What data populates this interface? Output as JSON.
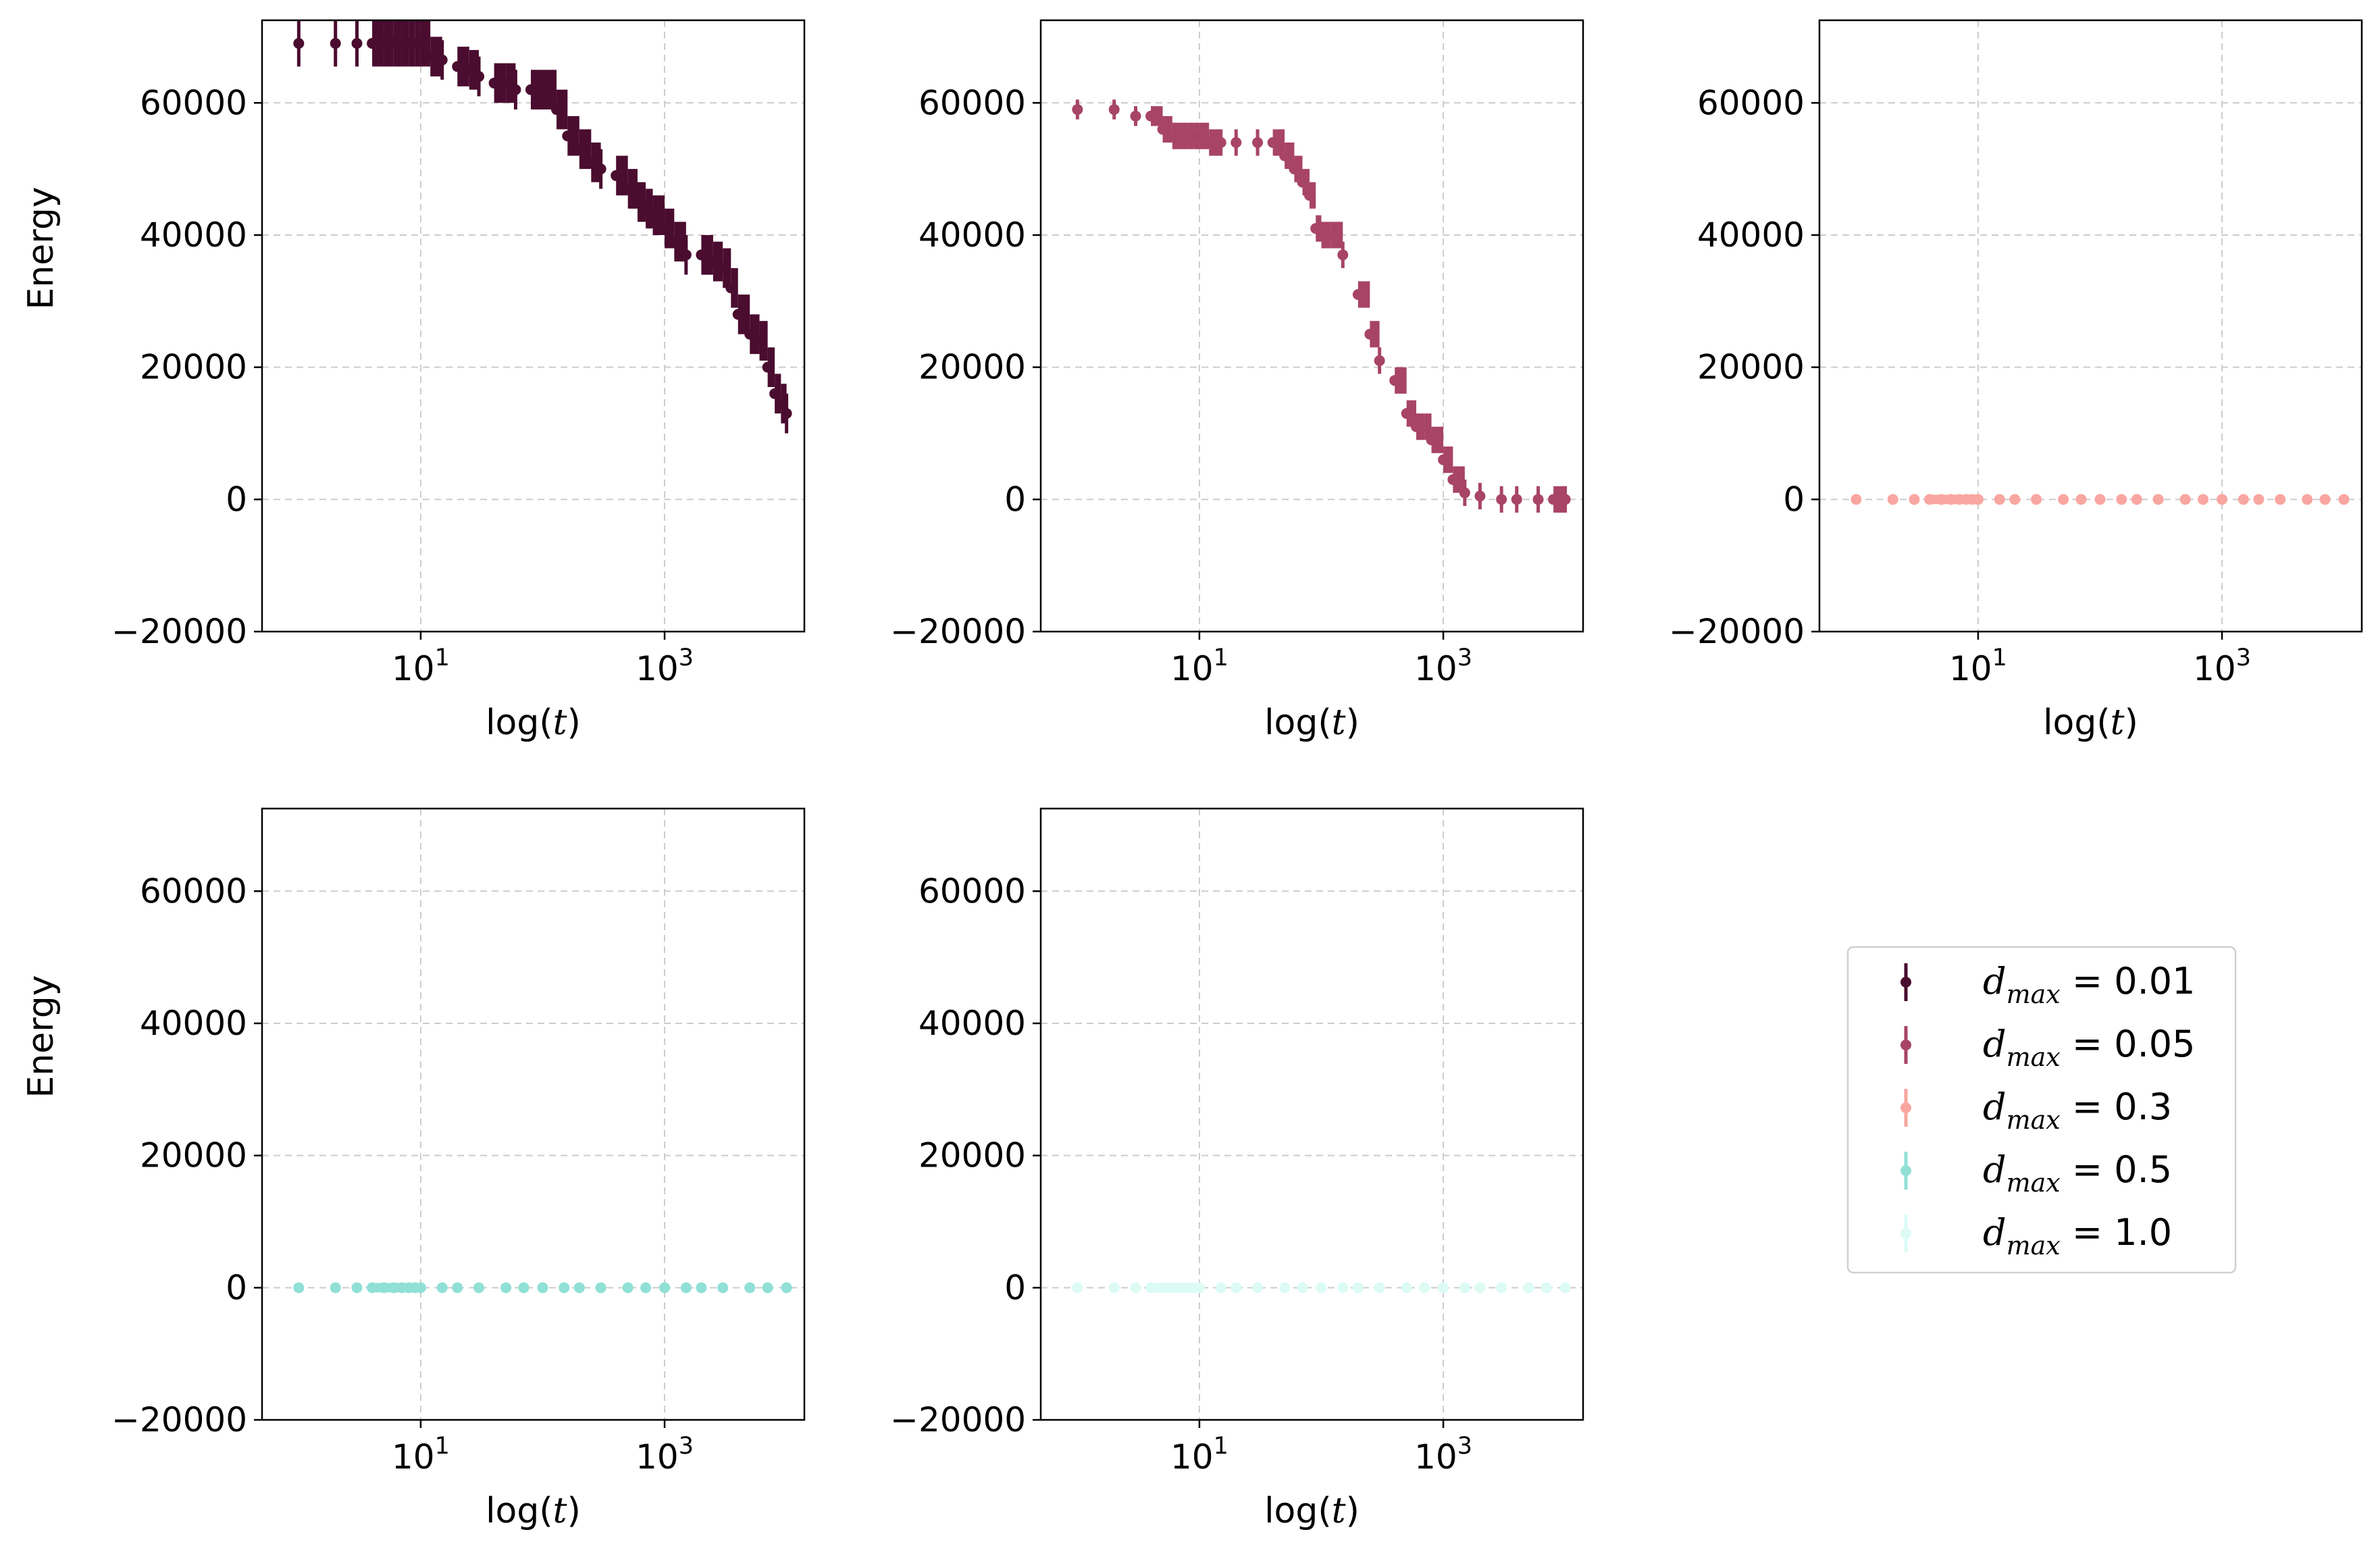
{
  "figure": {
    "panels": [
      {
        "series_index": 0,
        "xlabel_prefix": "log(",
        "xlabel_var": "t",
        "xlabel_suffix": ")",
        "ylabel": "Energy"
      },
      {
        "series_index": 1,
        "xlabel_prefix": "log(",
        "xlabel_var": "t",
        "xlabel_suffix": ")",
        "ylabel": ""
      },
      {
        "series_index": 2,
        "xlabel_prefix": "log(",
        "xlabel_var": "t",
        "xlabel_suffix": ")",
        "ylabel": ""
      },
      {
        "series_index": 3,
        "xlabel_prefix": "log(",
        "xlabel_var": "t",
        "xlabel_suffix": ")",
        "ylabel": "Energy"
      },
      {
        "series_index": 4,
        "xlabel_prefix": "log(",
        "xlabel_var": "t",
        "xlabel_suffix": ")",
        "ylabel": ""
      }
    ],
    "y_ticks": [
      {
        "value": -20000,
        "label": "−20000"
      },
      {
        "value": 0,
        "label": "0"
      },
      {
        "value": 20000,
        "label": "20000"
      },
      {
        "value": 40000,
        "label": "40000"
      },
      {
        "value": 60000,
        "label": "60000"
      }
    ],
    "x_ticks": [
      {
        "value": 10,
        "base": "10",
        "exp": "1"
      },
      {
        "value": 1000,
        "base": "10",
        "exp": "3"
      }
    ],
    "legend": {
      "placement": "right",
      "entries": [
        {
          "var": "d",
          "sub": "max",
          "eq": " = 0.01",
          "color": "#4a0c2f"
        },
        {
          "var": "d",
          "sub": "max",
          "eq": " = 0.05",
          "color": "#a84466"
        },
        {
          "var": "d",
          "sub": "max",
          "eq": " = 0.3",
          "color": "#f9a6a0"
        },
        {
          "var": "d",
          "sub": "max",
          "eq": " = 0.5",
          "color": "#90e0d6"
        },
        {
          "var": "d",
          "sub": "max",
          "eq": " = 1.0",
          "color": "#dcfbf5"
        }
      ]
    }
  },
  "chart_data": {
    "type": "scatter",
    "x_scale": "log",
    "xlim": [
      0.5,
      14000
    ],
    "ylim": [
      -20000,
      72500
    ],
    "grid": true,
    "series": [
      {
        "name": "d_max = 0.01",
        "color": "#4a0c2f",
        "x": [
          1,
          2,
          3,
          4,
          5,
          6,
          7,
          8,
          9,
          10,
          12,
          15,
          20,
          25,
          30,
          40,
          50,
          60,
          80,
          100,
          130,
          160,
          200,
          250,
          300,
          400,
          500,
          600,
          700,
          800,
          1000,
          1200,
          1500,
          2000,
          2500,
          3000,
          3500,
          4000,
          5000,
          6000,
          7000,
          8000,
          9000,
          10000
        ],
        "y": [
          69000,
          69000,
          69000,
          69000,
          69000,
          69000,
          69000,
          69000,
          69000,
          69000,
          67000,
          66500,
          65500,
          65000,
          64000,
          63000,
          63000,
          62000,
          62000,
          62000,
          59000,
          55000,
          53000,
          51000,
          50000,
          49000,
          47000,
          45000,
          44000,
          43000,
          41000,
          39000,
          37000,
          37000,
          36000,
          35000,
          32000,
          28000,
          25000,
          24000,
          20000,
          16000,
          14500,
          13000
        ],
        "err": [
          3500,
          3500,
          3500,
          3500,
          3500,
          3500,
          3500,
          3500,
          3500,
          3500,
          3000,
          3000,
          3000,
          3000,
          3000,
          3000,
          3000,
          3000,
          3000,
          3000,
          3000,
          3000,
          3000,
          3000,
          3000,
          3000,
          3000,
          3000,
          3000,
          3000,
          3000,
          3000,
          3000,
          3000,
          3000,
          3000,
          3000,
          3000,
          3000,
          3000,
          3000,
          3000,
          3000,
          3000
        ]
      },
      {
        "name": "d_max = 0.05",
        "color": "#a84466",
        "x": [
          1,
          2,
          3,
          4,
          5,
          6,
          7,
          8,
          9,
          10,
          12,
          15,
          20,
          30,
          40,
          50,
          60,
          70,
          80,
          90,
          100,
          120,
          150,
          200,
          250,
          300,
          400,
          500,
          600,
          700,
          800,
          1000,
          1200,
          1500,
          2000,
          3000,
          4000,
          6000,
          8000,
          10000
        ],
        "y": [
          59000,
          59000,
          58000,
          58000,
          56000,
          55000,
          55000,
          55000,
          55000,
          55000,
          54000,
          54000,
          54000,
          54000,
          54000,
          52000,
          50000,
          48000,
          46000,
          41000,
          40000,
          40000,
          37000,
          31000,
          25000,
          21000,
          18000,
          13000,
          11000,
          11000,
          9000,
          6000,
          3000,
          1000,
          500,
          0,
          0,
          0,
          0,
          0
        ],
        "err": [
          1500,
          1500,
          1500,
          1500,
          2000,
          2000,
          2000,
          2000,
          2000,
          2000,
          2000,
          2000,
          2000,
          2000,
          2000,
          2000,
          2000,
          2000,
          2000,
          2000,
          2000,
          2000,
          2000,
          2000,
          2000,
          2000,
          2000,
          2000,
          2000,
          2000,
          2000,
          2000,
          2000,
          2000,
          2000,
          2000,
          2000,
          2000,
          2000,
          2000
        ]
      },
      {
        "name": "d_max = 0.3",
        "color": "#f9a6a0",
        "x": [
          1,
          2,
          3,
          4,
          5,
          6,
          7,
          8,
          9,
          10,
          15,
          20,
          30,
          50,
          70,
          100,
          150,
          200,
          300,
          500,
          700,
          1000,
          1500,
          2000,
          3000,
          5000,
          7000,
          10000
        ],
        "y": [
          0,
          0,
          0,
          0,
          0,
          0,
          0,
          0,
          0,
          0,
          0,
          0,
          0,
          0,
          0,
          0,
          0,
          0,
          0,
          0,
          0,
          0,
          0,
          0,
          0,
          0,
          0,
          0
        ],
        "err": [
          0,
          0,
          0,
          0,
          0,
          0,
          0,
          0,
          0,
          0,
          0,
          0,
          0,
          0,
          0,
          0,
          0,
          0,
          0,
          0,
          0,
          0,
          0,
          0,
          0,
          0,
          0,
          0
        ]
      },
      {
        "name": "d_max = 0.5",
        "color": "#90e0d6",
        "x": [
          1,
          2,
          3,
          4,
          5,
          6,
          7,
          8,
          9,
          10,
          15,
          20,
          30,
          50,
          70,
          100,
          150,
          200,
          300,
          500,
          700,
          1000,
          1500,
          2000,
          3000,
          5000,
          7000,
          10000
        ],
        "y": [
          0,
          0,
          0,
          0,
          0,
          0,
          0,
          0,
          0,
          0,
          0,
          0,
          0,
          0,
          0,
          0,
          0,
          0,
          0,
          0,
          0,
          0,
          0,
          0,
          0,
          0,
          0,
          0
        ],
        "err": [
          0,
          0,
          0,
          0,
          0,
          0,
          0,
          0,
          0,
          0,
          0,
          0,
          0,
          0,
          0,
          0,
          0,
          0,
          0,
          0,
          0,
          0,
          0,
          0,
          0,
          0,
          0,
          0
        ]
      },
      {
        "name": "d_max = 1.0",
        "color": "#dcfbf5",
        "x": [
          1,
          2,
          3,
          4,
          5,
          6,
          7,
          8,
          9,
          10,
          15,
          20,
          30,
          50,
          70,
          100,
          150,
          200,
          300,
          500,
          700,
          1000,
          1500,
          2000,
          3000,
          5000,
          7000,
          10000
        ],
        "y": [
          0,
          0,
          0,
          0,
          0,
          0,
          0,
          0,
          0,
          0,
          0,
          0,
          0,
          0,
          0,
          0,
          0,
          0,
          0,
          0,
          0,
          0,
          0,
          0,
          0,
          0,
          0,
          0
        ],
        "err": [
          0,
          0,
          0,
          0,
          0,
          0,
          0,
          0,
          0,
          0,
          0,
          0,
          0,
          0,
          0,
          0,
          0,
          0,
          0,
          0,
          0,
          0,
          0,
          0,
          0,
          0,
          0,
          0
        ]
      }
    ]
  }
}
